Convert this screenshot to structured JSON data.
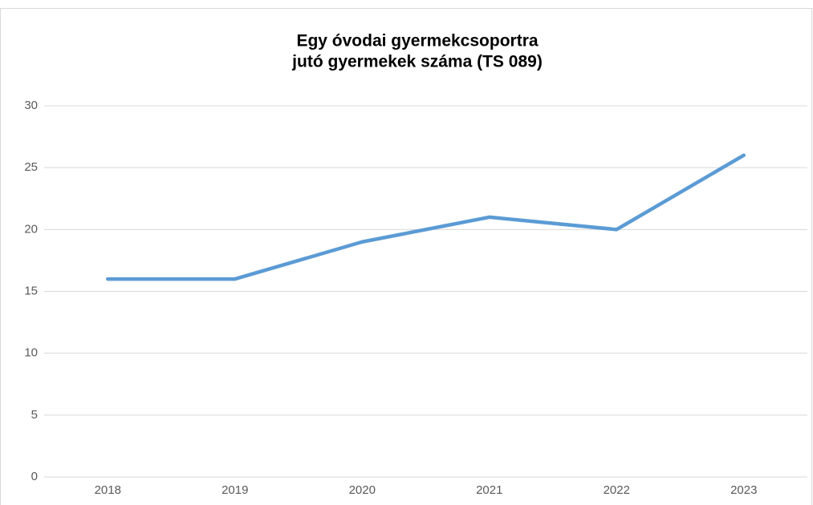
{
  "chart_data": {
    "type": "line",
    "title": [
      "Egy óvodai gyermekcsoportra",
      "jutó gyermekek száma (TS 089)"
    ],
    "categories": [
      "2018",
      "2019",
      "2020",
      "2021",
      "2022",
      "2023"
    ],
    "series": [
      {
        "color": "#5b9bd5",
        "values": [
          16,
          16,
          19,
          21,
          20,
          26
        ]
      }
    ],
    "ylim": [
      0,
      30
    ],
    "yticks": [
      0,
      5,
      10,
      15,
      20,
      25,
      30
    ],
    "grid": true
  }
}
